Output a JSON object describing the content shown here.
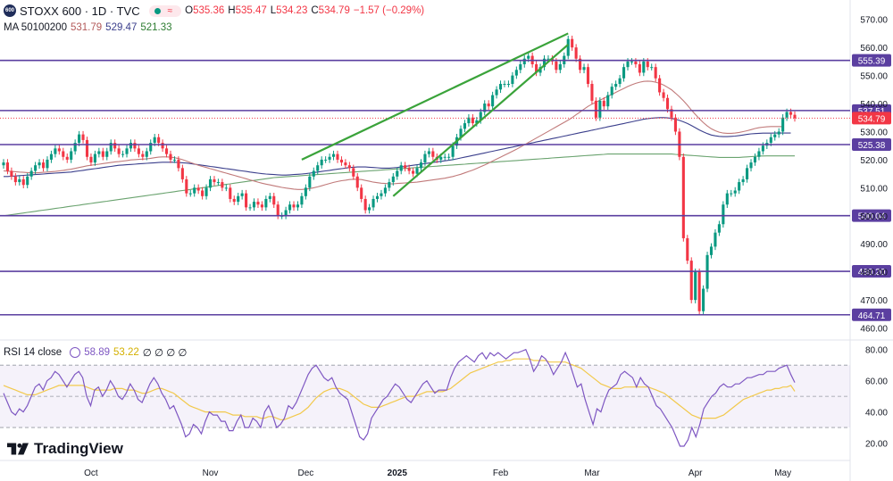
{
  "header": {
    "symbol_badge": "600",
    "symbol": "STOXX 600 · 1D · TVC",
    "ohlc": {
      "o_label": "O",
      "o": "535.36",
      "h_label": "H",
      "h": "535.47",
      "l_label": "L",
      "l": "534.23",
      "c_label": "C",
      "c": "534.79",
      "change": "−1.57 (−0.29%)"
    },
    "ma_label": "MA 50100200",
    "ma_values": [
      "531.79",
      "529.47",
      "521.33"
    ]
  },
  "rsi_header": {
    "label": "RSI 14 close",
    "value": "58.89",
    "ma_value": "53.22",
    "extra": "∅ ∅ ∅ ∅"
  },
  "logo": {
    "text": "TradingView"
  },
  "colors": {
    "up": "#089981",
    "down": "#f23645",
    "level": "#5b3fa0",
    "ma50": "#c17a7a",
    "ma100": "#3b3f8c",
    "ma200": "#6aa36f",
    "trend": "#3aa33a",
    "rsi": "#7e57c2",
    "rsi_ma": "#f2c94c",
    "price_badge": "#f23645",
    "level_badge": "#5b3fa0"
  },
  "chart_data": {
    "type": "candlestick",
    "price_axis": {
      "ticks": [
        "570.00",
        "560.00",
        "550.00",
        "540.00",
        "530.00",
        "520.00",
        "510.00",
        "500.00",
        "490.00",
        "480.00",
        "470.00",
        "460.00"
      ],
      "range": [
        457,
        575
      ]
    },
    "time_axis": {
      "ticks": [
        "Oct",
        "Nov",
        "Dec",
        "2025",
        "Feb",
        "Mar",
        "Apr",
        "May"
      ]
    },
    "levels": [
      555.39,
      537.51,
      525.38,
      500.04,
      480.2,
      464.71
    ],
    "level_labels": [
      "555.39",
      "537.51",
      "525.38",
      "500.04",
      "480.20",
      "464.71"
    ],
    "last_price": 534.79,
    "last_price_label": "534.79",
    "closes": [
      519,
      516,
      514,
      512,
      513,
      511,
      514,
      516,
      518,
      519,
      517,
      520,
      522,
      524,
      523,
      521,
      520,
      523,
      526,
      529,
      527,
      521,
      519,
      522,
      523,
      521,
      523,
      526,
      524,
      522,
      522,
      524,
      526,
      524,
      522,
      521,
      523,
      526,
      528,
      526,
      524,
      522,
      520,
      520,
      517,
      513,
      508,
      508,
      510,
      509,
      507,
      510,
      513,
      512,
      512,
      510,
      510,
      506,
      505,
      507,
      508,
      503,
      503,
      505,
      504,
      503,
      506,
      507,
      504,
      500,
      500,
      502,
      504,
      503,
      504,
      507,
      510,
      514,
      516,
      518,
      520,
      520,
      521,
      522,
      520,
      519,
      518,
      517,
      514,
      510,
      506,
      502,
      503,
      506,
      507,
      508,
      510,
      512,
      514,
      516,
      518,
      517,
      516,
      515,
      517,
      519,
      522,
      523,
      521,
      520,
      521,
      521,
      521,
      525,
      528,
      531,
      533,
      535,
      533,
      534,
      537,
      540,
      539,
      543,
      545,
      547,
      547,
      547,
      550,
      552,
      554,
      556,
      557,
      554,
      551,
      553,
      556,
      556,
      555,
      552,
      554,
      557,
      563,
      560,
      556,
      552,
      553,
      547,
      541,
      535,
      541,
      539,
      543,
      546,
      547,
      549,
      553,
      555,
      555,
      554,
      551,
      555,
      553,
      553,
      549,
      544,
      542,
      538,
      535,
      530,
      521,
      492,
      484,
      470,
      480,
      466,
      474,
      486,
      489,
      494,
      497,
      504,
      508,
      508,
      509,
      512,
      513,
      517,
      519,
      521,
      523,
      525,
      526,
      528,
      529,
      530,
      535,
      537,
      536,
      534.79
    ],
    "ma50": [
      516,
      515.9,
      515.8,
      515.7,
      515.6,
      515.5,
      515.4,
      515.3,
      515.3,
      515.4,
      515.5,
      515.6,
      515.7,
      515.8,
      516,
      516.2,
      516.4,
      516.6,
      516.9,
      517.2,
      517.5,
      517.8,
      518,
      518.2,
      518.4,
      518.6,
      518.8,
      519,
      519.2,
      519.3,
      519.5,
      519.7,
      519.9,
      520,
      520.1,
      520.2,
      520.3,
      520.5,
      520.7,
      520.9,
      521,
      521,
      520.9,
      520.7,
      520.4,
      520,
      519.5,
      519,
      518.5,
      518,
      517.6,
      517.2,
      516.8,
      516.4,
      516,
      515.6,
      515.2,
      514.8,
      514.4,
      514,
      513.6,
      513.2,
      512.8,
      512.4,
      512,
      511.6,
      511.3,
      511,
      510.7,
      510.4,
      510.1,
      509.9,
      509.7,
      509.5,
      509.4,
      509.4,
      509.5,
      509.7,
      510,
      510.3,
      510.7,
      511.1,
      511.5,
      511.9,
      512.2,
      512.5,
      512.7,
      512.9,
      513,
      513,
      512.9,
      512.6,
      512.3,
      512,
      511.8,
      511.6,
      511.5,
      511.4,
      511.4,
      511.5,
      511.6,
      511.7,
      511.8,
      511.9,
      512,
      512.2,
      512.4,
      512.6,
      512.8,
      513,
      513.2,
      513.4,
      513.7,
      514,
      514.4,
      514.8,
      515.3,
      515.8,
      516.3,
      516.9,
      517.5,
      518.1,
      518.8,
      519.5,
      520.2,
      520.9,
      521.6,
      522.3,
      523,
      523.7,
      524.5,
      525.3,
      526.1,
      526.9,
      527.7,
      528.5,
      529.3,
      530.1,
      530.9,
      531.7,
      532.5,
      533.3,
      534.1,
      535,
      536,
      537,
      538,
      539,
      539.8,
      540.5,
      541.2,
      541.9,
      542.6,
      543.3,
      544,
      544.7,
      545.4,
      546.1,
      546.7,
      547.2,
      547.6,
      547.9,
      548,
      547.9,
      547.6,
      547.2,
      546.6,
      545.8,
      544.9,
      543.7,
      542.4,
      541,
      539.4,
      537.7,
      536.1,
      534.6,
      533.2,
      532,
      531,
      530.3,
      529.8,
      529.5,
      529.4,
      529.4,
      529.5,
      529.7,
      530,
      530.3,
      530.7,
      531.1,
      531.4,
      531.6,
      531.7,
      531.8,
      531.8,
      531.8,
      531.79
    ],
    "ma100": [
      514,
      514,
      514.1,
      514.2,
      514.3,
      514.4,
      514.5,
      514.6,
      514.7,
      514.8,
      514.9,
      515,
      515.1,
      515.2,
      515.3,
      515.4,
      515.5,
      515.6,
      515.8,
      516,
      516.2,
      516.4,
      516.6,
      516.8,
      517,
      517.2,
      517.4,
      517.6,
      517.8,
      518,
      518.1,
      518.2,
      518.3,
      518.4,
      518.5,
      518.6,
      518.7,
      518.8,
      518.9,
      519,
      519.1,
      519.1,
      519.1,
      519.1,
      519,
      518.9,
      518.8,
      518.6,
      518.4,
      518.2,
      518,
      517.8,
      517.6,
      517.4,
      517.2,
      517,
      516.8,
      516.6,
      516.4,
      516.2,
      516,
      515.8,
      515.6,
      515.4,
      515.2,
      515,
      514.9,
      514.8,
      514.7,
      514.6,
      514.5,
      514.5,
      514.6,
      514.7,
      514.8,
      514.9,
      515,
      515.2,
      515.4,
      515.6,
      515.8,
      516,
      516.2,
      516.4,
      516.6,
      516.8,
      517,
      517.2,
      517.3,
      517.4,
      517.4,
      517.4,
      517.3,
      517.2,
      517.1,
      517,
      517,
      517,
      517.1,
      517.2,
      517.4,
      517.6,
      517.8,
      518,
      518.2,
      518.4,
      518.6,
      518.8,
      519,
      519.2,
      519.4,
      519.6,
      519.8,
      520,
      520.3,
      520.6,
      520.9,
      521.2,
      521.5,
      521.8,
      522.1,
      522.4,
      522.7,
      523,
      523.3,
      523.6,
      523.9,
      524.2,
      524.5,
      524.8,
      525.1,
      525.4,
      525.7,
      526,
      526.3,
      526.6,
      526.9,
      527.2,
      527.5,
      527.8,
      528.1,
      528.4,
      528.7,
      529,
      529.3,
      529.6,
      529.9,
      530.2,
      530.5,
      530.8,
      531.1,
      531.4,
      531.7,
      532,
      532.3,
      532.6,
      532.9,
      533.2,
      533.5,
      533.8,
      534.1,
      534.4,
      534.6,
      534.8,
      534.9,
      535,
      535,
      534.9,
      534.7,
      534.4,
      534,
      533.5,
      532.9,
      532.2,
      531.4,
      530.6,
      529.9,
      529.3,
      528.8,
      528.5,
      528.3,
      528.2,
      528.2,
      528.3,
      528.4,
      528.6,
      528.8,
      529,
      529.2,
      529.3,
      529.4,
      529.44,
      529.45,
      529.46,
      529.47,
      529.47,
      529.47,
      529.47,
      529.47
    ],
    "ma200": [
      500,
      500.2,
      500.4,
      500.6,
      500.8,
      501,
      501.2,
      501.4,
      501.6,
      501.8,
      502,
      502.2,
      502.4,
      502.6,
      502.8,
      503,
      503.2,
      503.4,
      503.6,
      503.8,
      504,
      504.2,
      504.4,
      504.6,
      504.8,
      505,
      505.2,
      505.4,
      505.6,
      505.8,
      506,
      506.2,
      506.4,
      506.6,
      506.8,
      507,
      507.2,
      507.4,
      507.6,
      507.8,
      508,
      508.2,
      508.4,
      508.6,
      508.8,
      509,
      509.2,
      509.4,
      509.6,
      509.8,
      510,
      510.2,
      510.4,
      510.6,
      510.8,
      511,
      511.2,
      511.4,
      511.6,
      511.8,
      512,
      512.2,
      512.4,
      512.6,
      512.8,
      513,
      513.2,
      513.4,
      513.6,
      513.7,
      513.8,
      513.9,
      514,
      514.1,
      514.2,
      514.3,
      514.4,
      514.5,
      514.6,
      514.7,
      514.8,
      514.9,
      515,
      515.1,
      515.2,
      515.3,
      515.4,
      515.5,
      515.6,
      515.7,
      515.8,
      515.9,
      516,
      516.1,
      516.2,
      516.3,
      516.4,
      516.5,
      516.6,
      516.7,
      516.8,
      516.9,
      517,
      517.1,
      517.2,
      517.3,
      517.4,
      517.5,
      517.6,
      517.7,
      517.8,
      517.9,
      518,
      518.1,
      518.2,
      518.3,
      518.4,
      518.5,
      518.6,
      518.7,
      518.8,
      518.9,
      519,
      519.1,
      519.2,
      519.3,
      519.4,
      519.5,
      519.6,
      519.7,
      519.8,
      519.9,
      520,
      520.1,
      520.2,
      520.3,
      520.4,
      520.5,
      520.6,
      520.7,
      520.8,
      520.9,
      521,
      521.1,
      521.2,
      521.3,
      521.4,
      521.5,
      521.6,
      521.7,
      521.8,
      521.9,
      522,
      522,
      522,
      522,
      522,
      522,
      522,
      522,
      522,
      522,
      522,
      522,
      522,
      522,
      522,
      522,
      522,
      521.9,
      521.8,
      521.7,
      521.6,
      521.5,
      521.4,
      521.3,
      521.2,
      521.1,
      521,
      520.9,
      520.8,
      520.8,
      520.8,
      520.8,
      520.8,
      520.8,
      520.9,
      521,
      521.1,
      521.2,
      521.3,
      521.3,
      521.33,
      521.33,
      521.33,
      521.33,
      521.33,
      521.33,
      521.33,
      521.33
    ],
    "trendlines": [
      {
        "from": [
          75,
          520
        ],
        "to": [
          142,
          565
        ]
      },
      {
        "from": [
          98,
          507
        ],
        "to": [
          142,
          561
        ]
      }
    ],
    "rsi": {
      "ticks": [
        "80.00",
        "60.00",
        "40.00",
        "20.00"
      ],
      "range": [
        10,
        85
      ],
      "bands": [
        70,
        50,
        30
      ],
      "values": [
        52,
        46,
        40,
        38,
        42,
        40,
        44,
        50,
        56,
        58,
        54,
        60,
        62,
        66,
        64,
        60,
        56,
        60,
        64,
        66,
        62,
        50,
        44,
        54,
        56,
        50,
        54,
        60,
        56,
        50,
        48,
        52,
        58,
        54,
        48,
        46,
        52,
        58,
        62,
        58,
        52,
        48,
        42,
        44,
        38,
        32,
        24,
        26,
        32,
        30,
        26,
        34,
        40,
        38,
        38,
        34,
        34,
        28,
        28,
        34,
        38,
        30,
        30,
        36,
        34,
        30,
        40,
        44,
        38,
        30,
        32,
        36,
        44,
        42,
        46,
        52,
        58,
        64,
        68,
        70,
        66,
        62,
        60,
        62,
        56,
        52,
        50,
        48,
        40,
        32,
        24,
        22,
        26,
        36,
        40,
        44,
        48,
        50,
        54,
        58,
        56,
        52,
        48,
        46,
        50,
        54,
        58,
        60,
        56,
        52,
        54,
        54,
        54,
        62,
        68,
        72,
        74,
        76,
        74,
        72,
        76,
        78,
        74,
        78,
        76,
        78,
        76,
        74,
        76,
        78,
        78,
        79,
        80,
        74,
        66,
        70,
        76,
        74,
        70,
        64,
        68,
        72,
        78,
        72,
        64,
        56,
        58,
        48,
        40,
        32,
        42,
        40,
        48,
        54,
        56,
        58,
        64,
        66,
        64,
        62,
        56,
        62,
        58,
        56,
        50,
        44,
        42,
        38,
        34,
        30,
        24,
        18,
        18,
        22,
        30,
        24,
        32,
        42,
        46,
        50,
        52,
        56,
        58,
        56,
        56,
        58,
        58,
        60,
        62,
        62,
        63,
        64,
        64,
        66,
        66,
        66,
        68,
        69,
        70,
        64,
        58.89
      ],
      "ma_values": [
        57,
        56,
        55,
        54,
        53,
        52,
        51,
        51,
        51,
        52,
        53,
        54,
        55,
        56,
        57,
        57,
        57,
        57,
        57,
        57,
        57,
        56,
        55,
        54,
        54,
        54,
        54,
        54,
        55,
        55,
        55,
        54,
        54,
        54,
        53,
        52,
        52,
        53,
        54,
        55,
        55,
        54,
        53,
        52,
        50,
        48,
        46,
        44,
        43,
        42,
        41,
        40,
        40,
        40,
        40,
        40,
        40,
        39,
        38,
        38,
        38,
        37,
        37,
        37,
        37,
        36,
        36,
        37,
        37,
        36,
        35,
        35,
        36,
        37,
        38,
        39,
        41,
        43,
        46,
        49,
        51,
        53,
        54,
        55,
        55,
        55,
        54,
        53,
        51,
        49,
        47,
        45,
        44,
        43,
        43,
        43,
        44,
        45,
        46,
        47,
        48,
        49,
        50,
        50,
        50,
        51,
        52,
        53,
        53,
        53,
        53,
        53,
        54,
        55,
        57,
        59,
        61,
        63,
        65,
        66,
        67,
        68,
        69,
        70,
        71,
        72,
        72,
        73,
        73,
        74,
        74,
        74,
        74,
        74,
        73,
        73,
        73,
        73,
        72,
        72,
        72,
        72,
        72,
        71,
        70,
        69,
        68,
        66,
        64,
        62,
        60,
        58,
        57,
        56,
        55,
        55,
        55,
        56,
        56,
        56,
        56,
        56,
        56,
        56,
        55,
        54,
        53,
        52,
        50,
        48,
        46,
        44,
        42,
        40,
        38,
        37,
        36,
        36,
        36,
        36,
        36,
        37,
        38,
        40,
        42,
        44,
        46,
        48,
        49,
        50,
        51,
        52,
        53,
        54,
        54,
        55,
        55,
        56,
        56,
        57,
        53.22
      ]
    }
  }
}
